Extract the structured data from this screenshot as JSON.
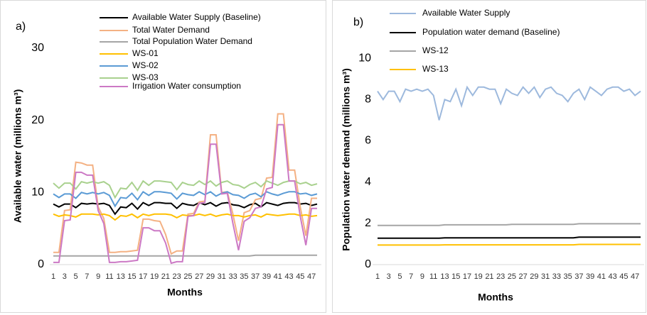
{
  "chart_data": [
    {
      "type": "line",
      "panel_label": "a)",
      "y_label": "Available water (millions m³)",
      "x_label": "Months",
      "categories": [
        "1",
        null,
        "3",
        null,
        "5",
        null,
        "7",
        null,
        "9",
        null,
        "11",
        null,
        "13",
        null,
        "15",
        null,
        "17",
        null,
        "19",
        null,
        "21",
        null,
        "23",
        null,
        "25",
        null,
        "27",
        null,
        "29",
        null,
        "31",
        null,
        "33",
        null,
        "35",
        null,
        "37",
        null,
        "39",
        null,
        "41",
        null,
        "43",
        null,
        "45",
        null,
        "47",
        null
      ],
      "ylim": [
        0,
        30
      ],
      "yticks": [
        0,
        10,
        20,
        30
      ],
      "grid": false,
      "series": [
        {
          "name": "Available Water Supply (Baseline)",
          "color": "#000000",
          "values": [
            8.4,
            8.0,
            8.4,
            8.4,
            7.9,
            8.5,
            8.4,
            8.5,
            8.4,
            8.5,
            8.2,
            7.0,
            8.0,
            7.9,
            8.5,
            7.7,
            8.6,
            8.2,
            8.6,
            8.6,
            8.5,
            8.5,
            7.8,
            8.5,
            8.3,
            8.2,
            8.6,
            8.3,
            8.6,
            8.1,
            8.5,
            8.6,
            8.3,
            8.2,
            7.9,
            8.3,
            8.5,
            8.0,
            8.6,
            8.4,
            8.2,
            8.5,
            8.6,
            8.6,
            8.4,
            8.5,
            8.2,
            8.4
          ]
        },
        {
          "name": "Total Water Demand",
          "color": "#f4b183",
          "values": [
            1.7,
            1.7,
            7.5,
            7.6,
            14.2,
            14.1,
            13.8,
            13.8,
            8.0,
            6.4,
            1.7,
            1.7,
            1.8,
            1.8,
            1.9,
            2.0,
            6.3,
            6.3,
            6.1,
            6.0,
            4.2,
            1.5,
            1.9,
            1.9,
            7.0,
            7.1,
            8.7,
            8.8,
            18.0,
            18.0,
            10.0,
            10.1,
            7.0,
            3.3,
            7.2,
            7.5,
            9.0,
            9.2,
            12.0,
            12.1,
            20.9,
            20.9,
            13.1,
            13.1,
            8.0,
            4.0,
            9.2,
            9.2
          ]
        },
        {
          "name": "Total Population Water Demand",
          "color": "#a5a5a5",
          "values": [
            1.2,
            1.2,
            1.2,
            1.2,
            1.2,
            1.2,
            1.2,
            1.2,
            1.2,
            1.2,
            1.2,
            1.2,
            1.2,
            1.2,
            1.2,
            1.2,
            1.2,
            1.2,
            1.2,
            1.2,
            1.2,
            1.2,
            1.2,
            1.2,
            1.2,
            1.2,
            1.2,
            1.2,
            1.2,
            1.2,
            1.2,
            1.2,
            1.2,
            1.2,
            1.2,
            1.2,
            1.3,
            1.3,
            1.3,
            1.3,
            1.3,
            1.3,
            1.3,
            1.3,
            1.3,
            1.3,
            1.3,
            1.3
          ]
        },
        {
          "name": "WS-01",
          "color": "#ffc000",
          "values": [
            7.0,
            6.7,
            6.9,
            6.8,
            6.6,
            7.0,
            7.0,
            7.0,
            6.9,
            7.0,
            6.8,
            6.2,
            6.8,
            6.7,
            7.0,
            6.5,
            7.0,
            6.8,
            7.0,
            7.0,
            7.0,
            6.9,
            6.5,
            6.9,
            6.8,
            6.8,
            7.0,
            6.8,
            7.0,
            6.7,
            6.9,
            7.0,
            6.8,
            6.8,
            6.6,
            6.8,
            6.9,
            6.6,
            7.0,
            6.9,
            6.8,
            6.9,
            7.0,
            7.0,
            6.8,
            6.9,
            6.7,
            6.8
          ]
        },
        {
          "name": "WS-02",
          "color": "#5b9bd5",
          "values": [
            9.8,
            9.3,
            9.8,
            9.8,
            9.2,
            10.0,
            9.8,
            10.0,
            9.8,
            10.0,
            9.6,
            8.1,
            9.3,
            9.2,
            9.9,
            9.0,
            10.1,
            9.6,
            10.1,
            10.1,
            10.0,
            9.9,
            9.1,
            9.9,
            9.7,
            9.6,
            10.1,
            9.7,
            10.1,
            9.5,
            9.9,
            10.1,
            9.7,
            9.6,
            9.2,
            9.7,
            9.9,
            9.4,
            10.1,
            9.8,
            9.6,
            9.9,
            10.1,
            10.1,
            9.8,
            9.9,
            9.6,
            9.8
          ]
        },
        {
          "name": "WS-03",
          "color": "#a9d18e",
          "values": [
            11.3,
            10.6,
            11.3,
            11.3,
            10.5,
            11.5,
            11.3,
            11.5,
            11.3,
            11.5,
            11.0,
            9.3,
            10.6,
            10.5,
            11.4,
            10.3,
            11.6,
            11.0,
            11.6,
            11.6,
            11.5,
            11.4,
            10.4,
            11.4,
            11.1,
            11.0,
            11.6,
            11.1,
            11.6,
            10.9,
            11.4,
            11.6,
            11.1,
            11.0,
            10.6,
            11.1,
            11.4,
            10.8,
            11.6,
            11.3,
            11.0,
            11.4,
            11.6,
            11.6,
            11.2,
            11.4,
            11.0,
            11.2
          ]
        },
        {
          "name": "Irrigation Water consumption",
          "color": "#cc79c5",
          "values": [
            0.3,
            0.3,
            6.1,
            6.2,
            12.8,
            12.8,
            12.4,
            12.4,
            7.5,
            5.7,
            0.3,
            0.3,
            0.4,
            0.4,
            0.5,
            0.6,
            5.1,
            5.1,
            4.7,
            4.7,
            3.0,
            0.2,
            0.4,
            0.4,
            6.7,
            6.8,
            8.5,
            8.6,
            16.7,
            16.7,
            9.8,
            9.9,
            5.7,
            2.0,
            6.0,
            6.5,
            7.8,
            8.0,
            10.5,
            10.7,
            19.4,
            19.4,
            11.6,
            11.6,
            6.7,
            2.7,
            7.8,
            7.8
          ]
        }
      ]
    },
    {
      "type": "line",
      "panel_label": "b)",
      "y_label": "Population water demand (millions m³)",
      "x_label": "Months",
      "categories": [
        "1",
        null,
        "3",
        null,
        "5",
        null,
        "7",
        null,
        "9",
        null,
        "11",
        null,
        "13",
        null,
        "15",
        null,
        "17",
        null,
        "19",
        null,
        "21",
        null,
        "23",
        null,
        "25",
        null,
        "27",
        null,
        "29",
        null,
        "31",
        null,
        "33",
        null,
        "35",
        null,
        "37",
        null,
        "39",
        null,
        "41",
        null,
        "43",
        null,
        "45",
        null,
        "47",
        null
      ],
      "ylim": [
        0,
        11
      ],
      "yticks": [
        0,
        2,
        4,
        6,
        8,
        10
      ],
      "grid": false,
      "series": [
        {
          "name": "Available Water Supply",
          "color": "#9db9dd",
          "values": [
            8.4,
            8.0,
            8.4,
            8.4,
            7.9,
            8.5,
            8.4,
            8.5,
            8.4,
            8.5,
            8.2,
            7.0,
            8.0,
            7.9,
            8.5,
            7.7,
            8.6,
            8.2,
            8.6,
            8.6,
            8.5,
            8.5,
            7.8,
            8.5,
            8.3,
            8.2,
            8.6,
            8.3,
            8.6,
            8.1,
            8.5,
            8.6,
            8.3,
            8.2,
            7.9,
            8.3,
            8.5,
            8.0,
            8.6,
            8.4,
            8.2,
            8.5,
            8.6,
            8.6,
            8.4,
            8.5,
            8.2,
            8.4
          ]
        },
        {
          "name": "Population water demand (Baseline)",
          "color": "#000000",
          "values": [
            1.28,
            1.28,
            1.28,
            1.28,
            1.28,
            1.28,
            1.28,
            1.28,
            1.28,
            1.28,
            1.28,
            1.28,
            1.3,
            1.3,
            1.3,
            1.3,
            1.3,
            1.3,
            1.3,
            1.3,
            1.3,
            1.3,
            1.3,
            1.3,
            1.3,
            1.3,
            1.3,
            1.3,
            1.3,
            1.3,
            1.3,
            1.3,
            1.3,
            1.3,
            1.3,
            1.3,
            1.33,
            1.33,
            1.33,
            1.33,
            1.33,
            1.33,
            1.33,
            1.33,
            1.33,
            1.33,
            1.33,
            1.33
          ]
        },
        {
          "name": "WS-12",
          "color": "#a5a5a5",
          "values": [
            1.9,
            1.9,
            1.9,
            1.9,
            1.9,
            1.9,
            1.9,
            1.9,
            1.9,
            1.9,
            1.9,
            1.9,
            1.93,
            1.93,
            1.93,
            1.93,
            1.93,
            1.93,
            1.93,
            1.93,
            1.93,
            1.93,
            1.93,
            1.93,
            1.95,
            1.95,
            1.95,
            1.95,
            1.95,
            1.95,
            1.95,
            1.95,
            1.95,
            1.95,
            1.95,
            1.95,
            1.98,
            1.98,
            1.98,
            1.98,
            1.98,
            1.98,
            1.98,
            1.98,
            1.98,
            1.98,
            1.98,
            1.98
          ]
        },
        {
          "name": "WS-13",
          "color": "#ffc000",
          "values": [
            0.95,
            0.95,
            0.95,
            0.95,
            0.95,
            0.95,
            0.95,
            0.95,
            0.95,
            0.95,
            0.95,
            0.95,
            0.96,
            0.96,
            0.96,
            0.96,
            0.96,
            0.96,
            0.96,
            0.96,
            0.96,
            0.96,
            0.96,
            0.96,
            0.96,
            0.96,
            0.96,
            0.96,
            0.96,
            0.96,
            0.96,
            0.96,
            0.96,
            0.96,
            0.96,
            0.96,
            0.98,
            0.98,
            0.98,
            0.98,
            0.98,
            0.98,
            0.98,
            0.98,
            0.98,
            0.98,
            0.98,
            0.98
          ]
        }
      ]
    }
  ]
}
